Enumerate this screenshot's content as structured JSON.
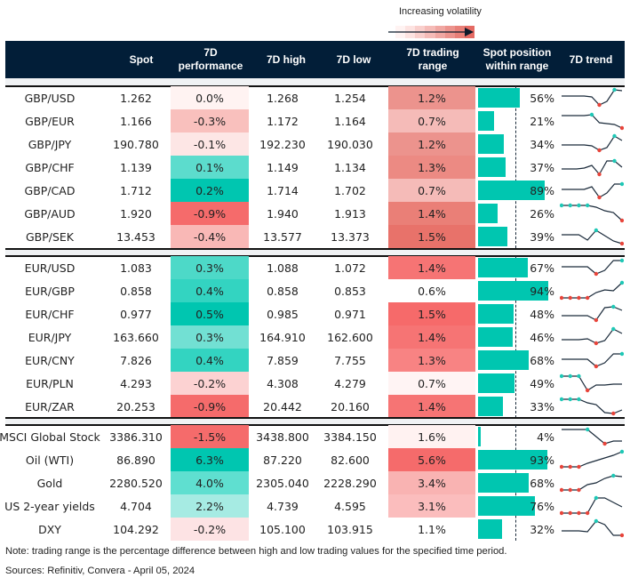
{
  "legend": {
    "label": "Increasing volatility",
    "gradient": [
      "#fff3f2",
      "#fde3e1",
      "#f9cfcc",
      "#f5bbb7",
      "#f0a7a2",
      "#ec938d",
      "#e87f78",
      "#e46a63"
    ]
  },
  "header": {
    "spot": "Spot",
    "perf_line1": "7D",
    "perf_line2": "performance",
    "high": "7D high",
    "low": "7D low",
    "range_line1": "7D trading",
    "range_line2": "range",
    "pos_line1": "Spot position",
    "pos_line2": "within range",
    "trend": "7D trend"
  },
  "colors": {
    "header_bg": "#021e38",
    "bar": "#00c6b0",
    "spark_line": "#1a2a3a",
    "spark_max": "#1ec8b6",
    "spark_min": "#e8443a"
  },
  "sections": [
    {
      "rows": [
        {
          "name": "GBP/USD",
          "spot": "1.262",
          "perf": "0.0%",
          "perf_color": "#fff3f2",
          "high": "1.268",
          "low": "1.254",
          "range": "1.2%",
          "range_color": "#ec938d",
          "position": 56,
          "position_label": "56%",
          "trend": [
            0.6,
            0.6,
            0.6,
            0.6,
            0.55,
            0.1,
            0.3,
            0.95,
            0.9
          ],
          "trend_max": [
            7
          ],
          "trend_min": [
            5
          ]
        },
        {
          "name": "GBP/EUR",
          "spot": "1.166",
          "perf": "-0.3%",
          "perf_color": "#f9c0bd",
          "high": "1.172",
          "low": "1.164",
          "range": "0.7%",
          "range_color": "#f5bbb8",
          "position": 21,
          "position_label": "21%",
          "trend": [
            0.8,
            0.8,
            0.8,
            0.8,
            0.85,
            0.4,
            0.35,
            0.3,
            0.1
          ],
          "trend_max": [
            4
          ],
          "trend_min": [
            8
          ]
        },
        {
          "name": "GBP/JPY",
          "spot": "190.780",
          "perf": "-0.1%",
          "perf_color": "#fde6e5",
          "high": "192.230",
          "low": "190.030",
          "range": "1.2%",
          "range_color": "#ec938d",
          "position": 34,
          "position_label": "34%",
          "trend": [
            0.45,
            0.45,
            0.45,
            0.45,
            0.4,
            0.15,
            0.3,
            0.95,
            0.7
          ],
          "trend_max": [
            7
          ],
          "trend_min": [
            5
          ]
        },
        {
          "name": "GBP/CHF",
          "spot": "1.139",
          "perf": "0.1%",
          "perf_color": "#5cdccd",
          "high": "1.149",
          "low": "1.134",
          "range": "1.3%",
          "range_color": "#ec8a83",
          "position": 37,
          "position_label": "37%",
          "trend": [
            0.4,
            0.4,
            0.4,
            0.45,
            0.6,
            0.1,
            0.85,
            0.85,
            0.5
          ],
          "trend_max": [
            7
          ],
          "trend_min": [
            5
          ]
        },
        {
          "name": "GBP/CAD",
          "spot": "1.712",
          "perf": "0.2%",
          "perf_color": "#00c6b0",
          "high": "1.714",
          "low": "1.702",
          "range": "0.7%",
          "range_color": "#f5bbb8",
          "position": 89,
          "position_label": "89%",
          "trend": [
            0.55,
            0.55,
            0.55,
            0.55,
            0.7,
            0.1,
            0.35,
            0.85,
            0.85
          ],
          "trend_max": [
            8
          ],
          "trend_min": [
            5
          ]
        },
        {
          "name": "GBP/AUD",
          "spot": "1.920",
          "perf": "-0.9%",
          "perf_color": "#f56b6b",
          "high": "1.940",
          "low": "1.913",
          "range": "1.4%",
          "range_color": "#ea7f77",
          "position": 26,
          "position_label": "26%",
          "trend": [
            0.95,
            0.95,
            0.95,
            0.95,
            0.85,
            0.65,
            0.55,
            0.1
          ],
          "trend_max": [
            0,
            1,
            2,
            3
          ],
          "trend_min": [
            7
          ]
        },
        {
          "name": "GBP/SEK",
          "spot": "13.453",
          "perf": "-0.4%",
          "perf_color": "#f9b8b6",
          "high": "13.577",
          "low": "13.373",
          "range": "1.5%",
          "range_color": "#e8726a",
          "position": 39,
          "position_label": "39%",
          "trend": [
            0.6,
            0.6,
            0.6,
            0.3,
            0.85,
            0.55,
            0.25,
            0.1
          ],
          "trend_max": [
            4
          ],
          "trend_min": [
            7
          ]
        }
      ]
    },
    {
      "rows": [
        {
          "name": "EUR/USD",
          "spot": "1.083",
          "perf": "0.3%",
          "perf_color": "#4dd9c8",
          "high": "1.088",
          "low": "1.072",
          "range": "1.4%",
          "range_color": "#f67474",
          "position": 67,
          "position_label": "67%",
          "trend": [
            0.55,
            0.55,
            0.55,
            0.55,
            0.15,
            0.35,
            0.9,
            0.9
          ],
          "trend_max": [
            7
          ],
          "trend_min": [
            4
          ]
        },
        {
          "name": "EUR/GBP",
          "spot": "0.858",
          "perf": "0.4%",
          "perf_color": "#33d4c1",
          "high": "0.858",
          "low": "0.853",
          "range": "0.6%",
          "range_color": "#ffffff",
          "position": 94,
          "position_label": "94%",
          "trend": [
            0.1,
            0.1,
            0.1,
            0.1,
            0.4,
            0.55,
            0.5,
            0.95
          ],
          "trend_max": [
            7
          ],
          "trend_min": [
            0,
            1,
            2,
            3
          ]
        },
        {
          "name": "EUR/CHF",
          "spot": "0.977",
          "perf": "0.5%",
          "perf_color": "#00c6b0",
          "high": "0.985",
          "low": "0.971",
          "range": "1.5%",
          "range_color": "#f66a6a",
          "position": 48,
          "position_label": "48%",
          "trend": [
            0.4,
            0.4,
            0.4,
            0.4,
            0.15,
            0.85,
            0.9,
            0.7
          ],
          "trend_max": [
            6
          ],
          "trend_min": [
            4
          ]
        },
        {
          "name": "EUR/JPY",
          "spot": "163.660",
          "perf": "0.3%",
          "perf_color": "#72e0d3",
          "high": "164.910",
          "low": "162.600",
          "range": "1.4%",
          "range_color": "#f67474",
          "position": 46,
          "position_label": "46%",
          "trend": [
            0.35,
            0.35,
            0.35,
            0.4,
            0.15,
            0.3,
            0.95,
            0.7
          ],
          "trend_max": [
            6
          ],
          "trend_min": [
            4
          ]
        },
        {
          "name": "EUR/CNY",
          "spot": "7.826",
          "perf": "0.4%",
          "perf_color": "#33d4c1",
          "high": "7.859",
          "low": "7.755",
          "range": "1.3%",
          "range_color": "#f88383",
          "position": 68,
          "position_label": "68%",
          "trend": [
            0.55,
            0.55,
            0.55,
            0.55,
            0.15,
            0.35,
            0.85,
            0.85
          ],
          "trend_max": [
            7
          ],
          "trend_min": [
            4
          ]
        },
        {
          "name": "EUR/PLN",
          "spot": "4.293",
          "perf": "-0.2%",
          "perf_color": "#fcd2d2",
          "high": "4.308",
          "low": "4.279",
          "range": "0.7%",
          "range_color": "#fff4f4",
          "position": 49,
          "position_label": "49%",
          "trend": [
            0.9,
            0.9,
            0.9,
            0.1,
            0.4,
            0.4,
            0.45,
            0.45
          ],
          "trend_max": [
            0,
            1,
            2
          ],
          "trend_min": [
            3
          ]
        },
        {
          "name": "EUR/ZAR",
          "spot": "20.253",
          "perf": "-0.9%",
          "perf_color": "#f56b6b",
          "high": "20.442",
          "low": "20.160",
          "range": "1.4%",
          "range_color": "#f67474",
          "position": 33,
          "position_label": "33%",
          "trend": [
            0.9,
            0.9,
            0.9,
            0.7,
            0.6,
            0.15,
            0.1,
            0.3
          ],
          "trend_max": [
            0,
            1,
            2
          ],
          "trend_min": [
            6
          ]
        }
      ]
    },
    {
      "rows": [
        {
          "name": "MSCI Global Stock",
          "spot": "3386.310",
          "perf": "-1.5%",
          "perf_color": "#f56b6b",
          "high": "3438.800",
          "low": "3384.150",
          "range": "1.6%",
          "range_color": "#fff2f1",
          "position": 4,
          "position_label": "4%",
          "trend": [
            0.9,
            0.9,
            0.9,
            0.9,
            0.5,
            0.1,
            0.25,
            0.25
          ],
          "trend_max": [
            3
          ],
          "trend_min": [
            5
          ]
        },
        {
          "name": "Oil (WTI)",
          "spot": "86.890",
          "perf": "6.3%",
          "perf_color": "#00c6b0",
          "high": "87.220",
          "low": "82.600",
          "range": "5.6%",
          "range_color": "#f56b6b",
          "position": 93,
          "position_label": "93%",
          "trend": [
            0.1,
            0.1,
            0.1,
            0.3,
            0.45,
            0.6,
            0.75,
            0.95
          ],
          "trend_max": [
            7
          ],
          "trend_min": [
            0,
            1,
            2
          ]
        },
        {
          "name": "Gold",
          "spot": "2280.520",
          "perf": "4.0%",
          "perf_color": "#5fdfd0",
          "high": "2305.040",
          "low": "2228.290",
          "range": "3.4%",
          "range_color": "#f9b3b2",
          "position": 68,
          "position_label": "68%",
          "trend": [
            0.1,
            0.1,
            0.1,
            0.4,
            0.5,
            0.75,
            0.9,
            0.85
          ],
          "trend_max": [
            6
          ],
          "trend_min": [
            0,
            1,
            2
          ]
        },
        {
          "name": "US 2-year yields",
          "spot": "4.704",
          "perf": "2.2%",
          "perf_color": "#a6ebe3",
          "high": "4.739",
          "low": "4.595",
          "range": "3.1%",
          "range_color": "#fbbdbd",
          "position": 76,
          "position_label": "76%",
          "trend": [
            0.1,
            0.1,
            0.1,
            0.1,
            0.95,
            0.95,
            0.7,
            0.45
          ],
          "trend_max": [
            4
          ],
          "trend_min": [
            0,
            1,
            2,
            3
          ]
        },
        {
          "name": "DXY",
          "spot": "104.292",
          "perf": "-0.2%",
          "perf_color": "#fde3e4",
          "high": "105.100",
          "low": "103.915",
          "range": "1.1%",
          "range_color": "#ffffff",
          "position": 32,
          "position_label": "32%",
          "trend": [
            0.4,
            0.4,
            0.4,
            0.35,
            0.95,
            0.75,
            0.15,
            0.15
          ],
          "trend_max": [
            4
          ],
          "trend_min": [
            7
          ]
        }
      ]
    }
  ],
  "footer": {
    "note": "Note: trading range is the percentage difference between high and low trading values for the specified time period.",
    "sources": "Sources: Refinitiv, Convera - April 05, 2024"
  }
}
